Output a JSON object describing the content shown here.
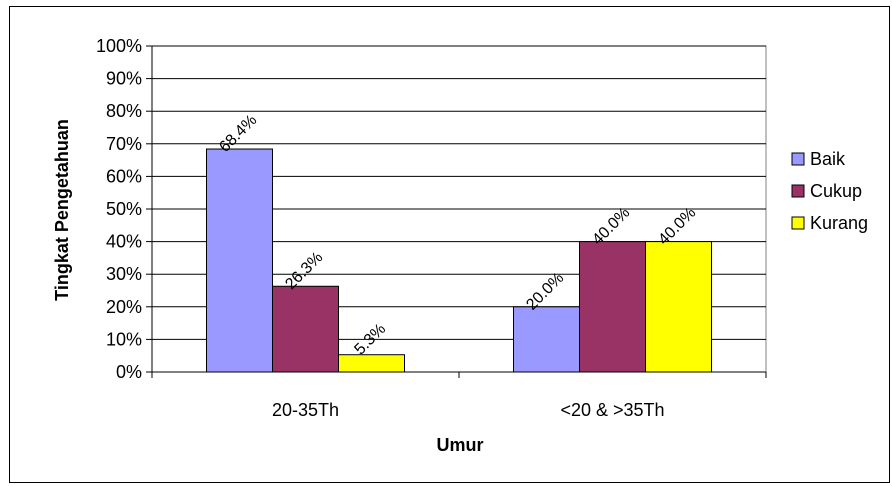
{
  "chart_data": {
    "type": "bar",
    "categories": [
      "20-35Th",
      "<20 & >35Th"
    ],
    "series": [
      {
        "name": "Baik",
        "values": [
          68.4,
          20.0
        ],
        "color": "#9999ff",
        "labels": [
          "68.4%",
          "20.0%"
        ]
      },
      {
        "name": "Cukup",
        "values": [
          26.3,
          40.0
        ],
        "color": "#993366",
        "labels": [
          "26.3%",
          "40.0%"
        ]
      },
      {
        "name": "Kurang",
        "values": [
          5.3,
          40.0
        ],
        "color": "#ffff00",
        "labels": [
          "5.3%",
          "40.0%"
        ]
      }
    ],
    "title": "",
    "xlabel": "Umur",
    "ylabel": "Tingkat Pengetahuan",
    "ylim": [
      0,
      100
    ],
    "yticks": [
      "0%",
      "10%",
      "20%",
      "30%",
      "40%",
      "50%",
      "60%",
      "70%",
      "80%",
      "90%",
      "100%"
    ],
    "grid": true,
    "legend": "right"
  }
}
